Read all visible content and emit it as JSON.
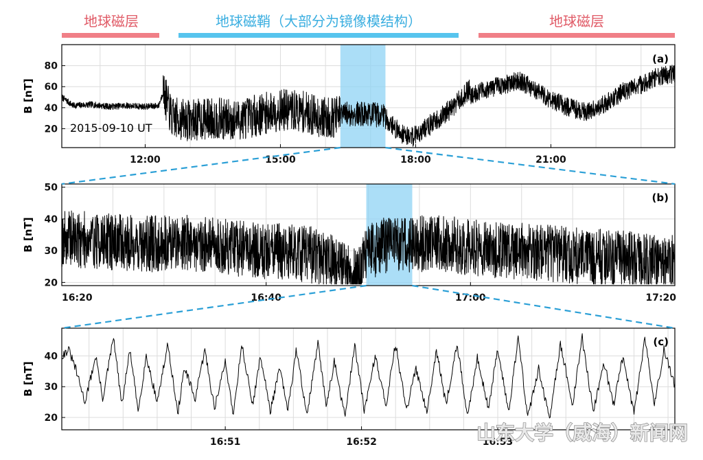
{
  "region_labels": {
    "left": "地球磁层",
    "middle": "地球磁鞘（大部分为镜像模结构）",
    "right": "地球磁层"
  },
  "colors": {
    "magnetosphere": "#f07f87",
    "magnetosheath": "#57c4ee",
    "highlight": "#8fd3f4",
    "zoom_line": "#2a9fd6",
    "trace": "#000000"
  },
  "watermark": "山东大学（威海）新闻网",
  "chart_data": [
    {
      "panel": "(a)",
      "type": "line",
      "ylabel": "B [nT]",
      "annotation": "2015-09-10 UT",
      "x_unit": "hours UT",
      "xlim": [
        10.15,
        23.75
      ],
      "ylim": [
        2,
        100
      ],
      "yticks": [
        20,
        40,
        60,
        80
      ],
      "xticks": [
        12,
        15,
        18,
        21
      ],
      "xtick_labels": [
        "12:00",
        "15:00",
        "18:00",
        "21:00"
      ],
      "highlight": [
        16.33,
        17.33
      ],
      "series": [
        {
          "x": [
            10.15,
            10.4,
            10.8,
            11.2,
            11.6,
            12.0,
            12.3,
            12.4
          ],
          "y": [
            50,
            42,
            43,
            41,
            42,
            41,
            42,
            55
          ],
          "noise": 3,
          "min": 5
        },
        {
          "x": [
            12.4,
            12.6,
            13.0,
            13.5,
            14.0,
            14.5,
            15.0,
            15.5,
            16.0,
            16.33
          ],
          "y": [
            55,
            30,
            28,
            30,
            28,
            33,
            38,
            36,
            30,
            32
          ],
          "noise": 20,
          "min": 3
        },
        {
          "x": [
            16.33,
            16.8,
            17.33
          ],
          "y": [
            34,
            34,
            33
          ],
          "noise": 12,
          "min": 18
        },
        {
          "x": [
            17.33,
            17.6,
            17.9,
            18.2,
            18.6,
            19.0,
            19.2
          ],
          "y": [
            30,
            18,
            12,
            20,
            32,
            48,
            58
          ],
          "noise": 10,
          "min": 3
        },
        {
          "x": [
            19.2,
            19.6,
            20.0,
            20.3,
            20.6,
            21.0,
            21.4,
            21.8,
            22.2,
            22.6,
            23.0,
            23.4,
            23.75
          ],
          "y": [
            52,
            58,
            62,
            66,
            58,
            48,
            40,
            36,
            44,
            55,
            62,
            70,
            72
          ],
          "noise": 9,
          "min": 8
        }
      ]
    },
    {
      "panel": "(b)",
      "type": "line",
      "ylabel": "B [nT]",
      "x_unit": "minutes after 16:00 UT",
      "xlim": [
        20,
        80
      ],
      "ylim": [
        19,
        51
      ],
      "yticks": [
        20,
        30,
        40,
        50
      ],
      "xticks": [
        20,
        40,
        60,
        80
      ],
      "xtick_labels": [
        "16:20",
        "16:40",
        "17:00",
        "17:20"
      ],
      "highlight": [
        49.8,
        54.3
      ],
      "series": [
        {
          "x": [
            20,
            24,
            28,
            32,
            36,
            40,
            44,
            47,
            49,
            50,
            52,
            54,
            56,
            60,
            64,
            68,
            72,
            76,
            80
          ],
          "y": [
            34,
            33,
            32,
            33,
            31,
            30,
            29,
            26,
            22,
            30,
            32,
            31,
            33,
            31,
            30,
            29,
            28,
            27,
            26
          ],
          "noise": 9,
          "min": 19.5,
          "max": 50.5
        }
      ]
    },
    {
      "panel": "(c)",
      "type": "line",
      "ylabel": "B [nT]",
      "x_unit": "minutes after 16:00 UT",
      "xlim": [
        49.8,
        54.3
      ],
      "ylim": [
        16,
        49
      ],
      "yticks": [
        20,
        30,
        40
      ],
      "xticks": [
        51,
        52,
        53
      ],
      "xtick_labels": [
        "16:51",
        "16:52",
        "16:53"
      ],
      "series": [
        {
          "x": [
            49.8,
            49.85,
            49.9,
            49.97,
            50.05,
            50.1,
            50.18,
            50.24,
            50.3,
            50.36,
            50.42,
            50.5,
            50.58,
            50.65,
            50.7,
            50.78,
            50.85,
            50.92,
            51.0,
            51.06,
            51.12,
            51.2,
            51.26,
            51.33,
            51.4,
            51.46,
            51.52,
            51.6,
            51.68,
            51.74,
            51.8,
            51.88,
            51.95,
            52.02,
            52.1,
            52.18,
            52.25,
            52.33,
            52.4,
            52.48,
            52.55,
            52.62,
            52.7,
            52.78,
            52.85,
            52.93,
            53.0,
            53.08,
            53.15,
            53.22,
            53.3,
            53.38,
            53.46,
            53.55,
            53.62,
            53.7,
            53.78,
            53.85,
            53.92,
            54.0,
            54.08,
            54.15,
            54.22,
            54.3
          ],
          "y": [
            40,
            42,
            36,
            25,
            40,
            26,
            46,
            24,
            42,
            22,
            40,
            25,
            44,
            21,
            36,
            26,
            42,
            23,
            38,
            21,
            44,
            24,
            40,
            22,
            36,
            22,
            42,
            21,
            44,
            24,
            38,
            20,
            44,
            22,
            40,
            24,
            44,
            22,
            36,
            22,
            42,
            24,
            44,
            20,
            40,
            23,
            42,
            22,
            46,
            20,
            36,
            19,
            44,
            24,
            46,
            22,
            38,
            24,
            40,
            21,
            46,
            24,
            42,
            30
          ],
          "noise": 1.4,
          "min": 17.5,
          "max": 48
        }
      ]
    }
  ]
}
